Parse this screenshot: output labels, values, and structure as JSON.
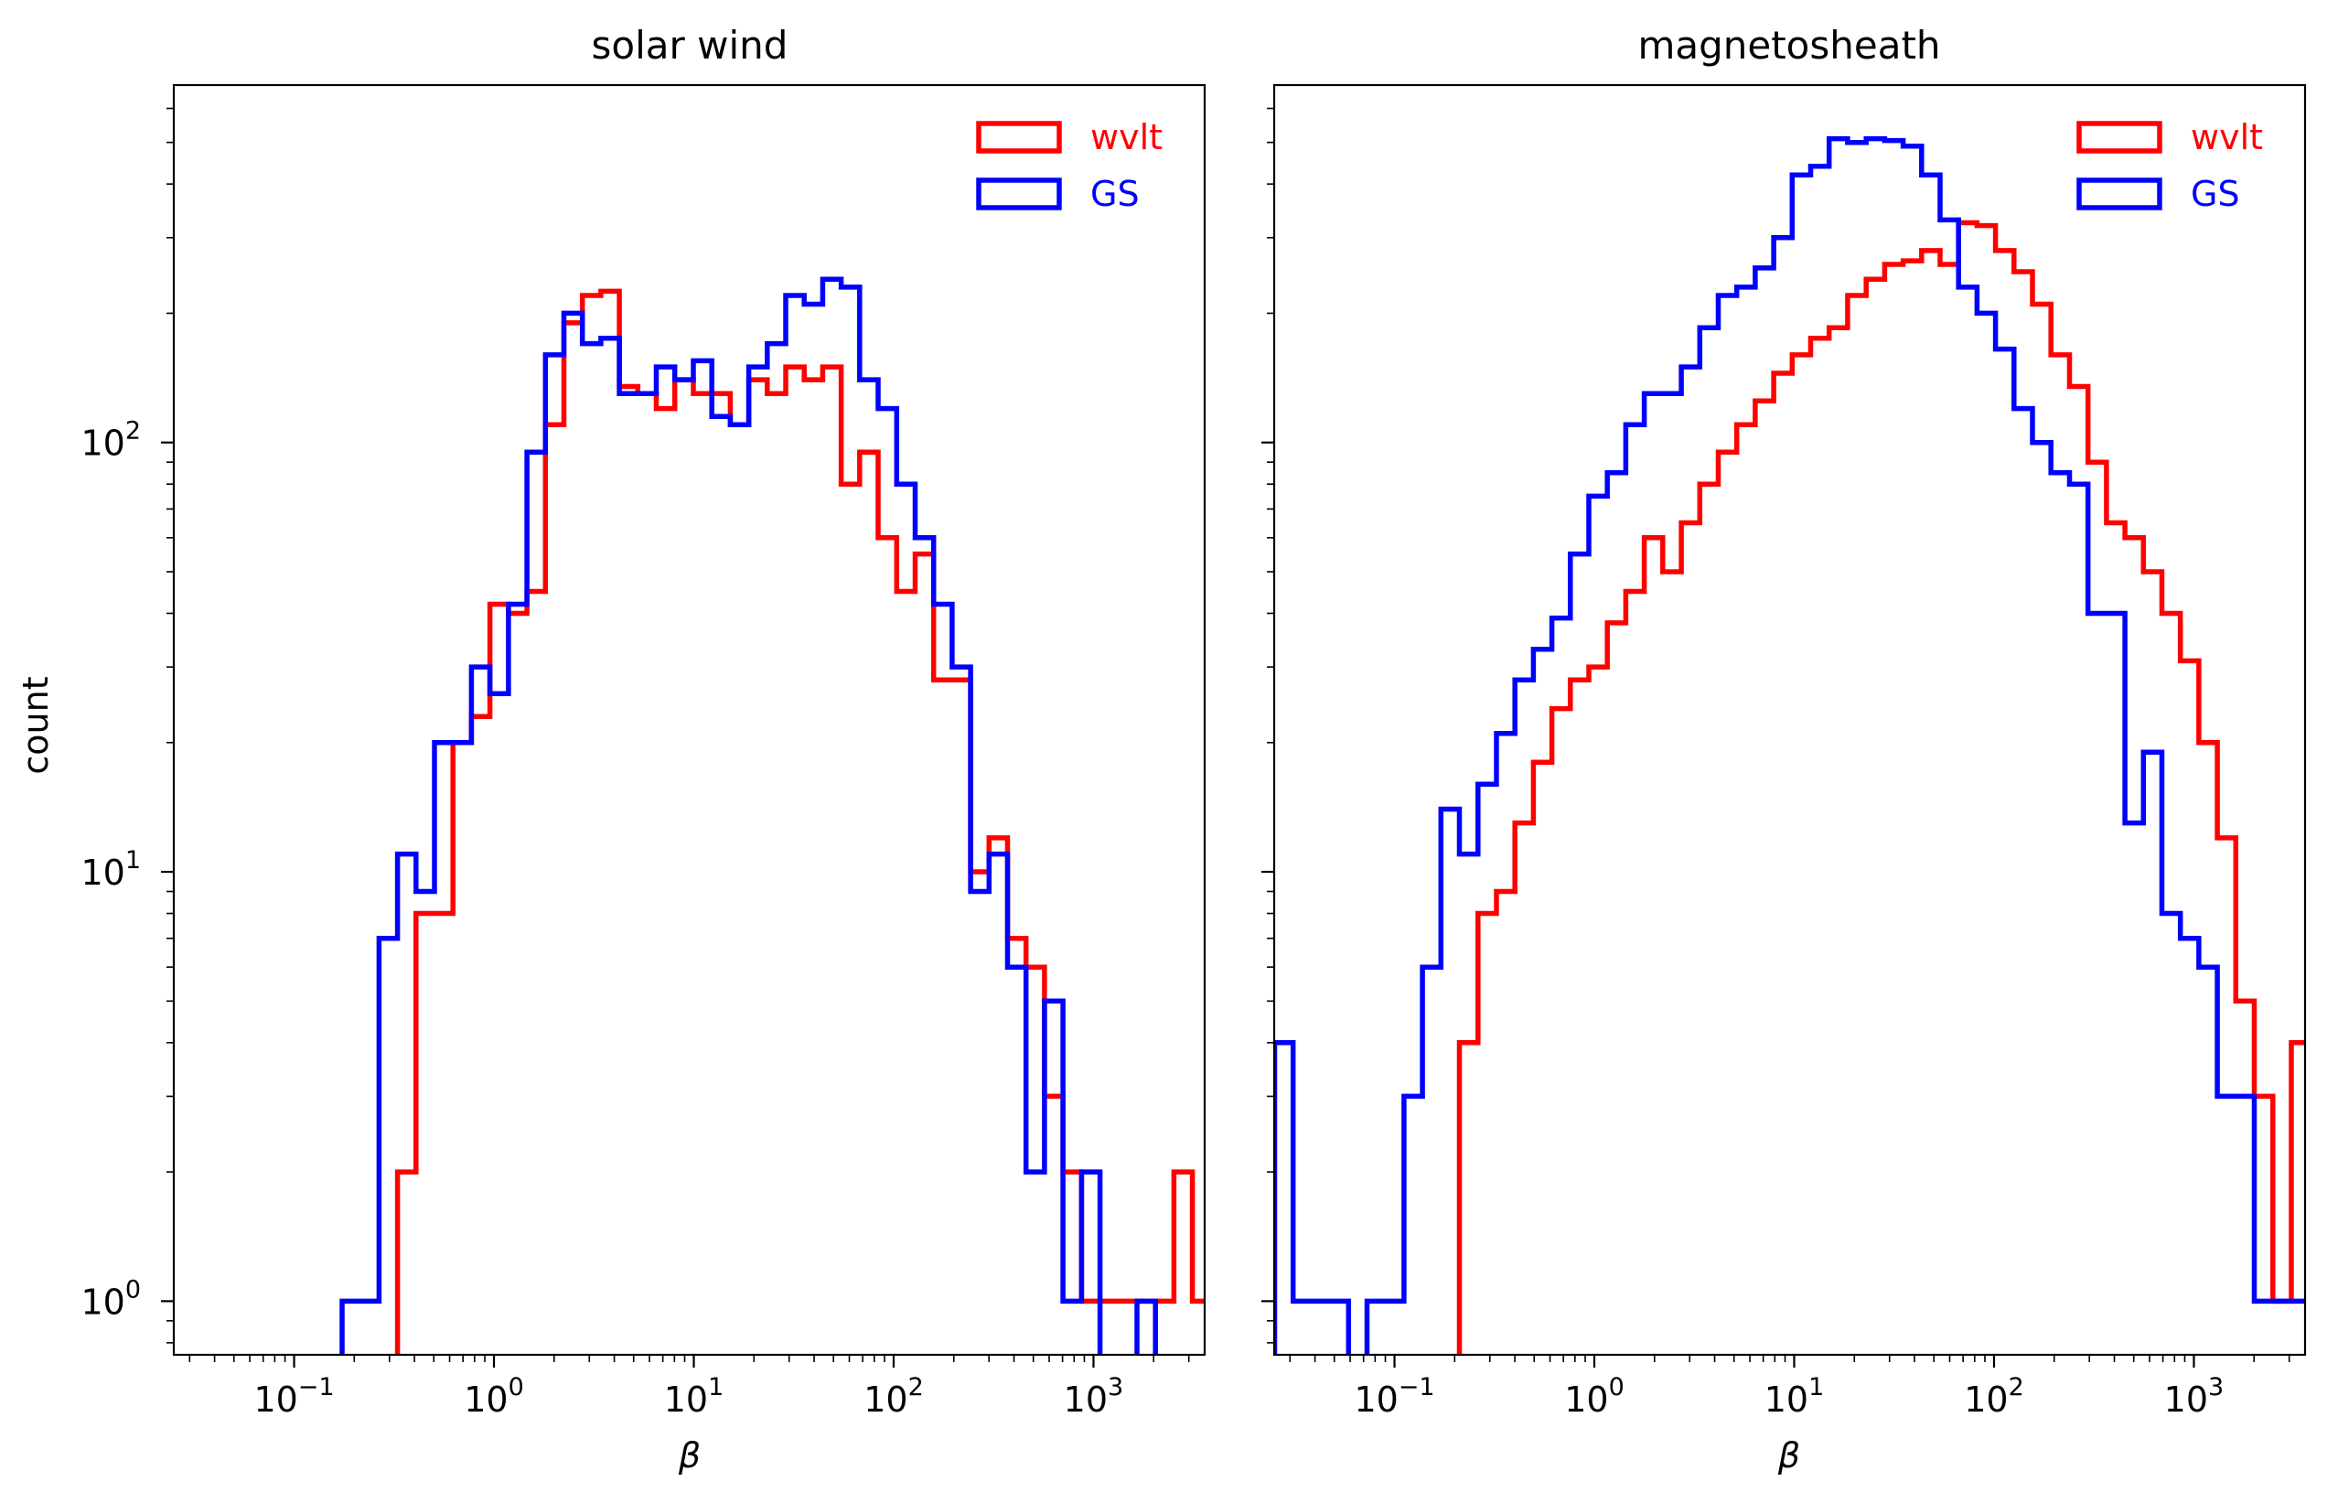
{
  "chart_data": [
    {
      "type": "step-histogram",
      "title": "solar wind",
      "xlabel": "β",
      "ylabel": "count",
      "xscale": "log",
      "yscale": "log",
      "xlim": [
        0.025,
        3600
      ],
      "ylim": [
        0.75,
        680
      ],
      "x_ticks": [
        {
          "value": 0.1,
          "base": "10",
          "exp": "−1"
        },
        {
          "value": 1,
          "base": "10",
          "exp": "0"
        },
        {
          "value": 10,
          "base": "10",
          "exp": "1"
        },
        {
          "value": 100,
          "base": "10",
          "exp": "2"
        },
        {
          "value": 1000,
          "base": "10",
          "exp": "3"
        }
      ],
      "y_ticks": [
        {
          "value": 1,
          "base": "10",
          "exp": "0"
        },
        {
          "value": 10,
          "base": "10",
          "exp": "1"
        },
        {
          "value": 100,
          "base": "10",
          "exp": "2"
        }
      ],
      "legend": {
        "placement": "top-right"
      },
      "bins": {
        "log_start": -0.76,
        "log_width": 0.0925
      },
      "series": [
        {
          "name": "wvlt",
          "color": "#ff0000",
          "counts": [
            0,
            0,
            0,
            2,
            8,
            8,
            20,
            23,
            42,
            40,
            45,
            110,
            190,
            220,
            225,
            135,
            130,
            120,
            140,
            130,
            130,
            110,
            140,
            130,
            150,
            140,
            150,
            80,
            95,
            60,
            45,
            55,
            28,
            28,
            10,
            12,
            7,
            6,
            3,
            2,
            1,
            1,
            1,
            1,
            1,
            2,
            1,
            1,
            1
          ]
        },
        {
          "name": "GS",
          "color": "#0000ff",
          "counts": [
            1,
            1,
            7,
            11,
            9,
            20,
            20,
            30,
            26,
            42,
            95,
            160,
            200,
            170,
            175,
            130,
            130,
            150,
            140,
            155,
            115,
            110,
            150,
            170,
            220,
            210,
            240,
            230,
            140,
            120,
            80,
            60,
            42,
            30,
            9,
            11,
            6,
            2,
            5,
            1,
            2,
            0,
            0,
            1
          ]
        }
      ]
    },
    {
      "type": "step-histogram",
      "title": "magnetosheath",
      "xlabel": "β",
      "ylabel": "",
      "xscale": "log",
      "yscale": "log",
      "xlim": [
        0.025,
        3600
      ],
      "ylim": [
        0.75,
        680
      ],
      "x_ticks": [
        {
          "value": 0.1,
          "base": "10",
          "exp": "−1"
        },
        {
          "value": 1,
          "base": "10",
          "exp": "0"
        },
        {
          "value": 10,
          "base": "10",
          "exp": "1"
        },
        {
          "value": 100,
          "base": "10",
          "exp": "2"
        },
        {
          "value": 1000,
          "base": "10",
          "exp": "3"
        }
      ],
      "y_ticks": [],
      "legend": {
        "placement": "top-right"
      },
      "bins": {
        "log_start": -1.6,
        "log_width": 0.0925
      },
      "series": [
        {
          "name": "wvlt",
          "color": "#ff0000",
          "counts": [
            0,
            0,
            0,
            0,
            0,
            0,
            0,
            0,
            0,
            0,
            4,
            8,
            9,
            13,
            18,
            24,
            28,
            30,
            38,
            45,
            60,
            50,
            65,
            80,
            95,
            110,
            125,
            145,
            160,
            175,
            185,
            220,
            240,
            260,
            265,
            280,
            260,
            325,
            320,
            280,
            250,
            210,
            160,
            135,
            90,
            65,
            60,
            50,
            40,
            31,
            20,
            12,
            5,
            3,
            1,
            4,
            1,
            1,
            1,
            3,
            3,
            1,
            1,
            1
          ]
        },
        {
          "name": "GS",
          "color": "#0000ff",
          "counts": [
            4,
            1,
            1,
            1,
            0,
            1,
            1,
            3,
            6,
            14,
            11,
            16,
            21,
            28,
            33,
            39,
            55,
            75,
            85,
            110,
            130,
            130,
            150,
            185,
            220,
            230,
            255,
            300,
            420,
            440,
            510,
            500,
            510,
            505,
            490,
            420,
            330,
            230,
            200,
            165,
            120,
            100,
            85,
            80,
            40,
            40,
            13,
            19,
            8,
            7,
            6,
            3,
            3,
            1,
            1,
            1
          ]
        }
      ]
    }
  ]
}
